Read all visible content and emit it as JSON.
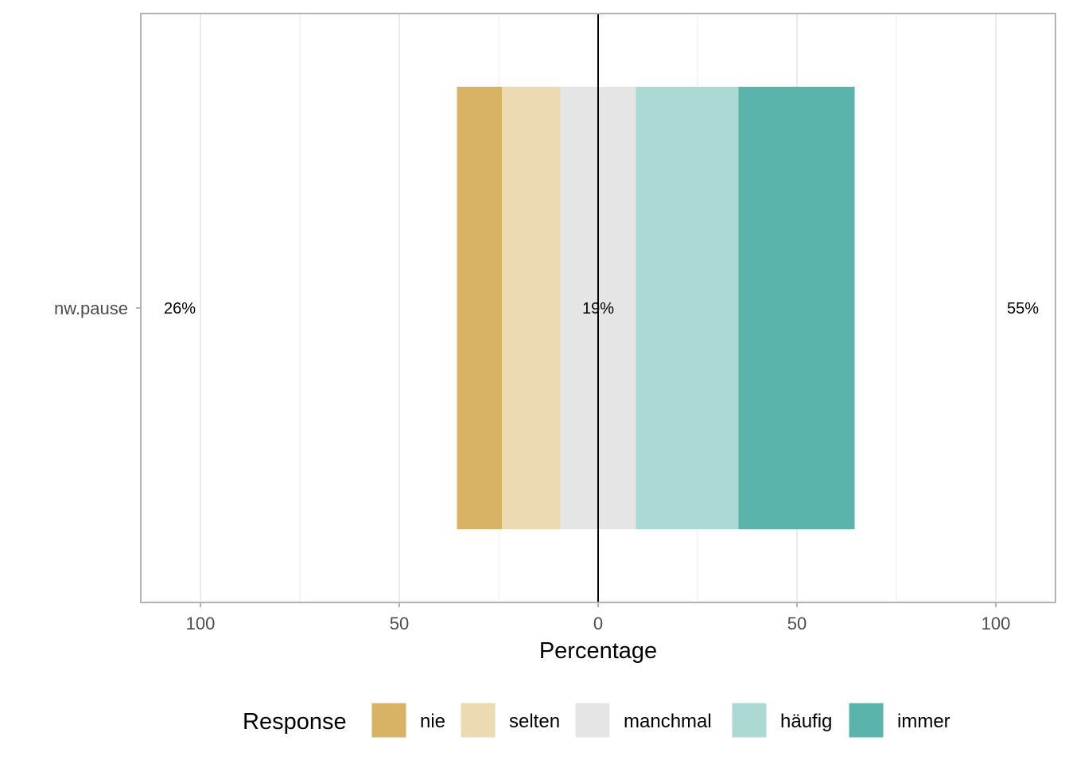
{
  "chart_data": {
    "type": "bar",
    "orientation": "horizontal",
    "layout": "diverging-stacked",
    "categories": [
      "nw.pause"
    ],
    "series": [
      {
        "name": "nie",
        "values": [
          11.3
        ],
        "color": "#D8B365"
      },
      {
        "name": "selten",
        "values": [
          14.7
        ],
        "color": "#EBDAB2"
      },
      {
        "name": "manchmal",
        "values": [
          19
        ],
        "color": "#E5E5E5"
      },
      {
        "name": "häufig",
        "values": [
          25.8
        ],
        "color": "#ADD9D5"
      },
      {
        "name": "immer",
        "values": [
          29.2
        ],
        "color": "#5AB4AC"
      }
    ],
    "summary_labels": {
      "left": "26%",
      "center": "19%",
      "right": "55%"
    },
    "xlabel": "Percentage",
    "xlim": [
      -115,
      115
    ],
    "xticks": [
      -100,
      -50,
      0,
      50,
      100
    ],
    "xtick_labels": [
      "100",
      "50",
      "0",
      "50",
      "100"
    ],
    "legend": {
      "title": "Response",
      "position": "bottom"
    },
    "grid": true
  }
}
